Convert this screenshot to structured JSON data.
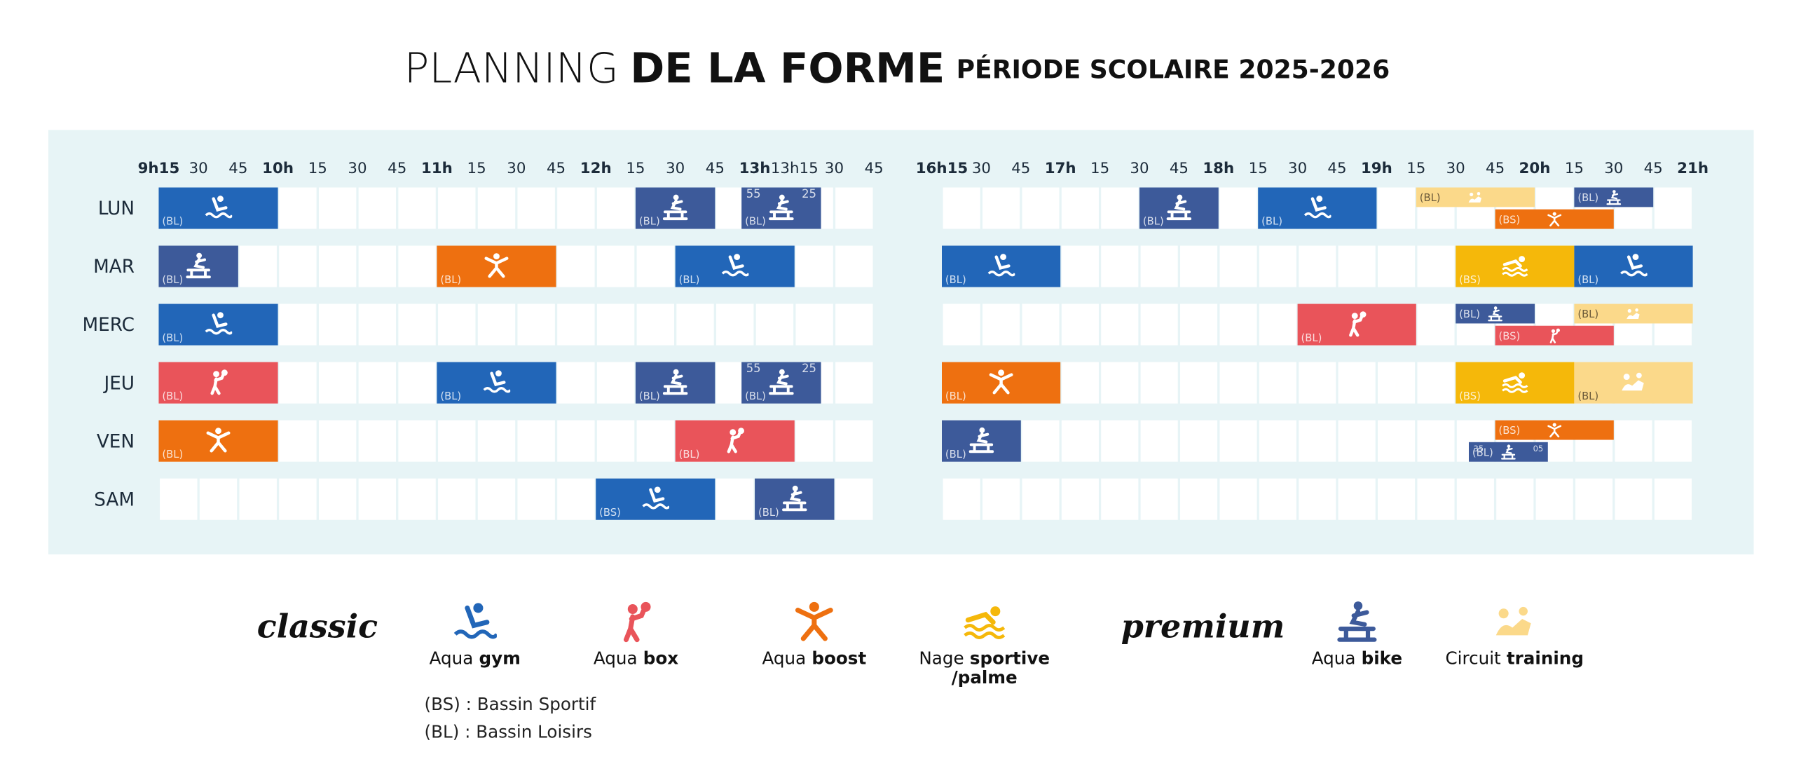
{
  "title": {
    "light": "PLANNING",
    "bold": "DE LA FORME",
    "sub": "PÉRIODE SCOLAIRE 2025-2026"
  },
  "days": [
    "LUN",
    "MAR",
    "MERC",
    "JEU",
    "VEN",
    "SAM"
  ],
  "periods": [
    {
      "range": [
        9.25,
        13.75
      ],
      "ticks": [
        {
          "value": 9.25,
          "label": "9h15",
          "bold": true
        },
        {
          "value": 9.5,
          "label": "30"
        },
        {
          "value": 9.75,
          "label": "45"
        },
        {
          "value": 10,
          "label": "10h",
          "bold": true
        },
        {
          "value": 10.25,
          "label": "15"
        },
        {
          "value": 10.5,
          "label": "30"
        },
        {
          "value": 10.75,
          "label": "45"
        },
        {
          "value": 11,
          "label": "11h",
          "bold": true
        },
        {
          "value": 11.25,
          "label": "15"
        },
        {
          "value": 11.5,
          "label": "30"
        },
        {
          "value": 11.75,
          "label": "45"
        },
        {
          "value": 12,
          "label": "12h",
          "bold": true
        },
        {
          "value": 12.25,
          "label": "15"
        },
        {
          "value": 12.5,
          "label": "30"
        },
        {
          "value": 12.75,
          "label": "45"
        },
        {
          "value": 13,
          "label": "13h",
          "bold": true
        },
        {
          "value": 13.25,
          "label": "13h15"
        },
        {
          "value": 13.5,
          "label": "30"
        },
        {
          "value": 13.75,
          "label": "45"
        }
      ]
    },
    {
      "range": [
        16.25,
        21
      ],
      "ticks": [
        {
          "value": 16.25,
          "label": "16h15",
          "bold": true
        },
        {
          "value": 16.5,
          "label": "30"
        },
        {
          "value": 16.75,
          "label": "45"
        },
        {
          "value": 17,
          "label": "17h",
          "bold": true
        },
        {
          "value": 17.25,
          "label": "15"
        },
        {
          "value": 17.5,
          "label": "30"
        },
        {
          "value": 17.75,
          "label": "45"
        },
        {
          "value": 18,
          "label": "18h",
          "bold": true
        },
        {
          "value": 18.25,
          "label": "15"
        },
        {
          "value": 18.5,
          "label": "30"
        },
        {
          "value": 18.75,
          "label": "45"
        },
        {
          "value": 19,
          "label": "19h",
          "bold": true
        },
        {
          "value": 19.25,
          "label": "15"
        },
        {
          "value": 19.5,
          "label": "30"
        },
        {
          "value": 19.75,
          "label": "45"
        },
        {
          "value": 20,
          "label": "20h",
          "bold": true
        },
        {
          "value": 20.25,
          "label": "15"
        },
        {
          "value": 20.5,
          "label": "30"
        },
        {
          "value": 20.75,
          "label": "45"
        },
        {
          "value": 21,
          "label": "21h",
          "bold": true
        }
      ]
    }
  ],
  "sessions": [
    {
      "day": "LUN",
      "activity": "gym",
      "pool": "(BL)",
      "start": 9.25,
      "end": 10
    },
    {
      "day": "LUN",
      "activity": "bike",
      "pool": "(BL)",
      "start": 12.25,
      "end": 12.75
    },
    {
      "day": "LUN",
      "activity": "bike",
      "pool": "(BL)",
      "start": 12.9167,
      "end": 13.4167,
      "notes": [
        55,
        25
      ]
    },
    {
      "day": "LUN",
      "activity": "bike",
      "pool": "(BL)",
      "start": 17.5,
      "end": 18
    },
    {
      "day": "LUN",
      "activity": "gym",
      "pool": "(BL)",
      "start": 18.25,
      "end": 19
    },
    {
      "day": "LUN",
      "activity": "training",
      "pool": "(BL)",
      "start": 19.25,
      "end": 20,
      "lane": "top"
    },
    {
      "day": "LUN",
      "activity": "bike",
      "pool": "(BL)",
      "start": 20.25,
      "end": 20.75,
      "lane": "top"
    },
    {
      "day": "LUN",
      "activity": "boost",
      "pool": "(BS)",
      "start": 19.75,
      "end": 20.5,
      "lane": "bottom"
    },
    {
      "day": "MAR",
      "activity": "bike",
      "pool": "(BL)",
      "start": 9.25,
      "end": 9.75
    },
    {
      "day": "MAR",
      "activity": "boost",
      "pool": "(BL)",
      "start": 11,
      "end": 11.75
    },
    {
      "day": "MAR",
      "activity": "gym",
      "pool": "(BL)",
      "start": 12.5,
      "end": 13.25
    },
    {
      "day": "MAR",
      "activity": "gym",
      "pool": "(BL)",
      "start": 16.25,
      "end": 17
    },
    {
      "day": "MAR",
      "activity": "sportive",
      "pool": "(BS)",
      "start": 19.5,
      "end": 20.25
    },
    {
      "day": "MAR",
      "activity": "gym",
      "pool": "(BL)",
      "start": 20.25,
      "end": 21
    },
    {
      "day": "MERC",
      "activity": "gym",
      "pool": "(BL)",
      "start": 9.25,
      "end": 10
    },
    {
      "day": "MERC",
      "activity": "box",
      "pool": "(BL)",
      "start": 18.5,
      "end": 19.25
    },
    {
      "day": "MERC",
      "activity": "bike",
      "pool": "(BL)",
      "start": 19.5,
      "end": 20,
      "lane": "top"
    },
    {
      "day": "MERC",
      "activity": "training",
      "pool": "(BL)",
      "start": 20.25,
      "end": 21,
      "lane": "top"
    },
    {
      "day": "MERC",
      "activity": "box",
      "pool": "(BS)",
      "start": 19.75,
      "end": 20.5,
      "lane": "bottom"
    },
    {
      "day": "JEU",
      "activity": "box",
      "pool": "(BL)",
      "start": 9.25,
      "end": 10
    },
    {
      "day": "JEU",
      "activity": "gym",
      "pool": "(BL)",
      "start": 11,
      "end": 11.75
    },
    {
      "day": "JEU",
      "activity": "bike",
      "pool": "(BL)",
      "start": 12.25,
      "end": 12.75
    },
    {
      "day": "JEU",
      "activity": "bike",
      "pool": "(BL)",
      "start": 12.9167,
      "end": 13.4167,
      "notes": [
        55,
        25
      ]
    },
    {
      "day": "JEU",
      "activity": "boost",
      "pool": "(BL)",
      "start": 16.25,
      "end": 17
    },
    {
      "day": "JEU",
      "activity": "sportive",
      "pool": "(BS)",
      "start": 19.5,
      "end": 20.25
    },
    {
      "day": "JEU",
      "activity": "training",
      "pool": "(BL)",
      "start": 20.25,
      "end": 21
    },
    {
      "day": "VEN",
      "activity": "boost",
      "pool": "(BL)",
      "start": 9.25,
      "end": 10
    },
    {
      "day": "VEN",
      "activity": "box",
      "pool": "(BL)",
      "start": 12.5,
      "end": 13.25
    },
    {
      "day": "VEN",
      "activity": "bike",
      "pool": "(BL)",
      "start": 16.25,
      "end": 16.75
    },
    {
      "day": "VEN",
      "activity": "boost",
      "pool": "(BS)",
      "start": 19.75,
      "end": 20.5,
      "lane": "top"
    },
    {
      "day": "VEN",
      "activity": "bike",
      "pool": "(BL)",
      "start": 19.5833,
      "end": 20.0833,
      "lane": "bottom",
      "notes": [
        35,
        "05"
      ]
    },
    {
      "day": "SAM",
      "activity": "gym",
      "pool": "(BS)",
      "start": 12,
      "end": 12.75
    },
    {
      "day": "SAM",
      "activity": "bike",
      "pool": "(BL)",
      "start": 13,
      "end": 13.5
    }
  ],
  "legend": {
    "groups": [
      {
        "name": "classic",
        "items": [
          {
            "text": "Aqua",
            "bold": "gym",
            "color": "#2266b8"
          },
          {
            "text": "Aqua",
            "bold": "box",
            "color": "#e9545a"
          },
          {
            "text": "Aqua",
            "bold": "boost",
            "color": "#ee7010"
          },
          {
            "text": "Nage",
            "bold": "sportive",
            "line2": "/palme",
            "color": "#f5b80a"
          }
        ]
      },
      {
        "name": "premium",
        "items": [
          {
            "text": "Aqua",
            "bold": "bike",
            "color": "#3d5a9a"
          },
          {
            "text": "Circuit",
            "bold": "training",
            "color": "#fbd98a"
          }
        ]
      }
    ],
    "notes": [
      "(BS) : Bassin Sportif",
      "(BL) : Bassin Loisirs"
    ]
  }
}
